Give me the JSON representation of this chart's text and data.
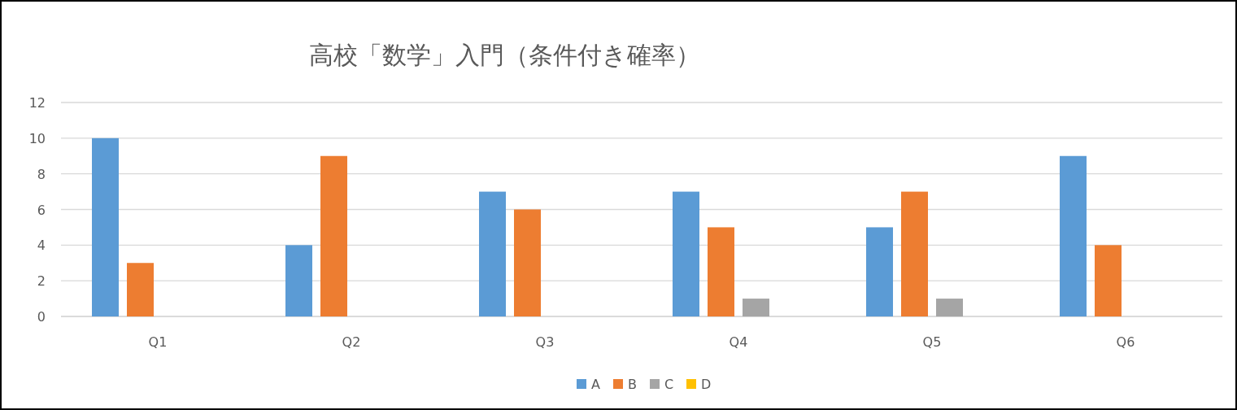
{
  "chart_data": {
    "type": "bar",
    "title": "高校「数学」入門（条件付き確率）",
    "categories": [
      "Q1",
      "Q2",
      "Q3",
      "Q4",
      "Q5",
      "Q6"
    ],
    "series": [
      {
        "name": "A",
        "color": "#5b9bd5",
        "values": [
          10,
          4,
          7,
          7,
          5,
          9
        ]
      },
      {
        "name": "B",
        "color": "#ed7d31",
        "values": [
          3,
          9,
          6,
          5,
          7,
          4
        ]
      },
      {
        "name": "C",
        "color": "#a5a5a5",
        "values": [
          0,
          0,
          0,
          1,
          1,
          0
        ]
      },
      {
        "name": "D",
        "color": "#ffc000",
        "values": [
          0,
          0,
          0,
          0,
          0,
          0
        ]
      }
    ],
    "ylim": [
      0,
      12
    ],
    "yticks": [
      0,
      2,
      4,
      6,
      8,
      10,
      12
    ],
    "grid": "y",
    "legend": "bottom"
  }
}
